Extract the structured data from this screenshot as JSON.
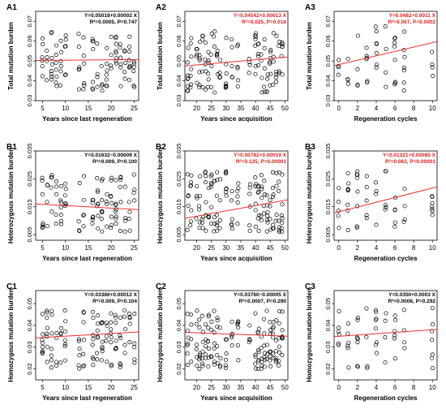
{
  "panels": [
    {
      "id": "A1",
      "ylabel": "Total mutation burden",
      "xlabel": "Years since last regeneration",
      "xticks": [
        5,
        10,
        15,
        20,
        25
      ],
      "yticks": [
        0.03,
        0.04,
        0.05,
        0.06,
        0.07
      ],
      "xlim": [
        3.5,
        26
      ],
      "ylim": [
        0.03,
        0.075
      ],
      "eq": "Y=0.05018+0.00002 X",
      "stats": "R²=0.0005, P=0.747",
      "highlight": false,
      "line": {
        "intercept": 0.05018,
        "slope": 2e-05
      },
      "points": {
        "xs": [
          5,
          6,
          7,
          8,
          9,
          10,
          13,
          14,
          16,
          17,
          18,
          19,
          20,
          21,
          22,
          23,
          24,
          25
        ],
        "y_lo": 0.035,
        "y_hi": 0.065
      }
    },
    {
      "id": "A2",
      "ylabel": "Total mutation burden",
      "xlabel": "Years since acquisition",
      "xticks": [
        20,
        25,
        30,
        35,
        40,
        45,
        50
      ],
      "yticks": [
        0.03,
        0.04,
        0.05,
        0.06,
        0.07
      ],
      "xlim": [
        16,
        51
      ],
      "ylim": [
        0.03,
        0.075
      ],
      "eq": "Y=0.04542+0.00013 X",
      "stats": "R²=0.025, P=0.016",
      "highlight": true,
      "line": {
        "intercept": 0.04542,
        "slope": 0.00013
      },
      "points": {
        "xs": [
          17,
          18,
          20,
          21,
          22,
          23,
          24,
          25,
          26,
          27,
          28,
          30,
          32,
          34,
          38,
          40,
          41,
          42,
          43,
          44,
          45,
          46,
          47,
          48,
          49
        ],
        "y_lo": 0.034,
        "y_hi": 0.065
      }
    },
    {
      "id": "A3",
      "ylabel": "Total mutation burden",
      "xlabel": "Regeneration cycles",
      "xticks": [
        0,
        2,
        4,
        6,
        8,
        10
      ],
      "yticks": [
        0.03,
        0.04,
        0.05,
        0.06,
        0.07
      ],
      "xlim": [
        -0.5,
        10.5
      ],
      "ylim": [
        0.03,
        0.075
      ],
      "eq": "Y=0.0482+0.0011 X",
      "stats": "R²=0.067, P=0.0002",
      "highlight": true,
      "line": {
        "intercept": 0.0482,
        "slope": 0.0011
      },
      "points": {
        "xs": [
          0,
          1,
          2,
          3,
          4,
          5,
          6,
          7,
          10
        ],
        "y_lo": 0.035,
        "y_hi": 0.068
      }
    },
    {
      "id": "B1",
      "ylabel": "Heterozygous mutation burden",
      "xlabel": "Years since last regeneration",
      "xticks": [
        5,
        10,
        15,
        20,
        25
      ],
      "yticks": [
        0.005,
        0.015,
        0.025,
        0.035
      ],
      "xlim": [
        3.5,
        26
      ],
      "ylim": [
        0.003,
        0.035
      ],
      "eq": "Y=0.01632−0.00009 X",
      "stats": "R²=0.009, P=0.100",
      "highlight": false,
      "line": {
        "intercept": 0.01632,
        "slope": -9e-05
      },
      "points": {
        "xs": [
          5,
          6,
          7,
          8,
          9,
          10,
          13,
          14,
          16,
          17,
          18,
          19,
          20,
          21,
          22,
          23,
          24,
          25
        ],
        "y_lo": 0.006,
        "y_hi": 0.027
      }
    },
    {
      "id": "B2",
      "ylabel": "Heterozygous mutation burden",
      "xlabel": "Years since acquisition",
      "xticks": [
        20,
        25,
        30,
        35,
        40,
        45,
        50
      ],
      "yticks": [
        0.005,
        0.015,
        0.025,
        0.035
      ],
      "xlim": [
        16,
        51
      ],
      "ylim": [
        0.003,
        0.035
      ],
      "eq": "Y=0.00782+0.00019 X",
      "stats": "R²=0.125, P=0.00001",
      "highlight": true,
      "line": {
        "intercept": 0.00782,
        "slope": 0.00019
      },
      "points": {
        "xs": [
          17,
          18,
          20,
          21,
          22,
          23,
          24,
          25,
          26,
          27,
          28,
          30,
          32,
          34,
          38,
          40,
          41,
          42,
          43,
          44,
          45,
          46,
          47,
          48,
          49
        ],
        "y_lo": 0.006,
        "y_hi": 0.028
      }
    },
    {
      "id": "B3",
      "ylabel": "Heterozygous mutation burden",
      "xlabel": "Regeneration cycles",
      "xticks": [
        0,
        2,
        4,
        6,
        8,
        10
      ],
      "yticks": [
        0.005,
        0.015,
        0.025,
        0.035
      ],
      "xlim": [
        -0.5,
        10.5
      ],
      "ylim": [
        0.003,
        0.035
      ],
      "eq": "Y=0.01321+0.00085 X",
      "stats": "R²=0.083, P=0.00001",
      "highlight": true,
      "line": {
        "intercept": 0.01321,
        "slope": 0.00085
      },
      "points": {
        "xs": [
          0,
          1,
          2,
          3,
          4,
          5,
          6,
          7,
          10
        ],
        "y_lo": 0.006,
        "y_hi": 0.028
      }
    },
    {
      "id": "C1",
      "ylabel": "Homozygous mutation burden",
      "xlabel": "Years since last regeneration",
      "xticks": [
        5,
        10,
        15,
        20,
        25
      ],
      "yticks": [
        0.02,
        0.03,
        0.04,
        0.05
      ],
      "xlim": [
        3.5,
        26
      ],
      "ylim": [
        0.015,
        0.056
      ],
      "eq": "Y=0.03386+0.00012 X",
      "stats": "R²=0.009, P=0.104",
      "highlight": false,
      "line": {
        "intercept": 0.03386,
        "slope": 0.00012
      },
      "points": {
        "xs": [
          5,
          6,
          7,
          8,
          9,
          10,
          13,
          14,
          16,
          17,
          18,
          19,
          20,
          21,
          22,
          23,
          24,
          25
        ],
        "y_lo": 0.02,
        "y_hi": 0.047
      }
    },
    {
      "id": "C2",
      "ylabel": "Homozygous mutation burden",
      "xlabel": "Years since acquisition",
      "xticks": [
        20,
        25,
        30,
        35,
        40,
        45,
        50
      ],
      "yticks": [
        0.02,
        0.03,
        0.04,
        0.05
      ],
      "xlim": [
        16,
        51
      ],
      "ylim": [
        0.015,
        0.056
      ],
      "eq": "Y=0.03760−0.00005 X",
      "stats": "R²=0.0007, P=0.290",
      "highlight": false,
      "line": {
        "intercept": 0.0376,
        "slope": -5e-05
      },
      "points": {
        "xs": [
          17,
          18,
          20,
          21,
          22,
          23,
          24,
          25,
          26,
          27,
          28,
          30,
          32,
          34,
          38,
          40,
          41,
          42,
          43,
          44,
          45,
          46,
          47,
          48,
          49
        ],
        "y_lo": 0.02,
        "y_hi": 0.047
      }
    },
    {
      "id": "C3",
      "ylabel": "Homozygous mutation burden",
      "xlabel": "Regeneration cycles",
      "xticks": [
        0,
        2,
        4,
        6,
        8,
        10
      ],
      "yticks": [
        0.02,
        0.03,
        0.04,
        0.05
      ],
      "xlim": [
        -0.5,
        10.5
      ],
      "ylim": [
        0.015,
        0.056
      ],
      "eq": "Y=0.0350+0.0003 X",
      "stats": "R²=0.0006, P=0.292",
      "highlight": false,
      "line": {
        "intercept": 0.035,
        "slope": 0.0003
      },
      "points": {
        "xs": [
          0,
          1,
          2,
          3,
          4,
          5,
          6,
          7,
          10
        ],
        "y_lo": 0.02,
        "y_hi": 0.048
      }
    }
  ],
  "chart_data": {
    "type": "scatter",
    "panels": [
      "A1",
      "A2",
      "A3",
      "B1",
      "B2",
      "B3",
      "C1",
      "C2",
      "C3"
    ],
    "series_colors": {
      "points": "#000000",
      "regression_line": "#e8302a",
      "significant_text": "#d42020"
    }
  }
}
